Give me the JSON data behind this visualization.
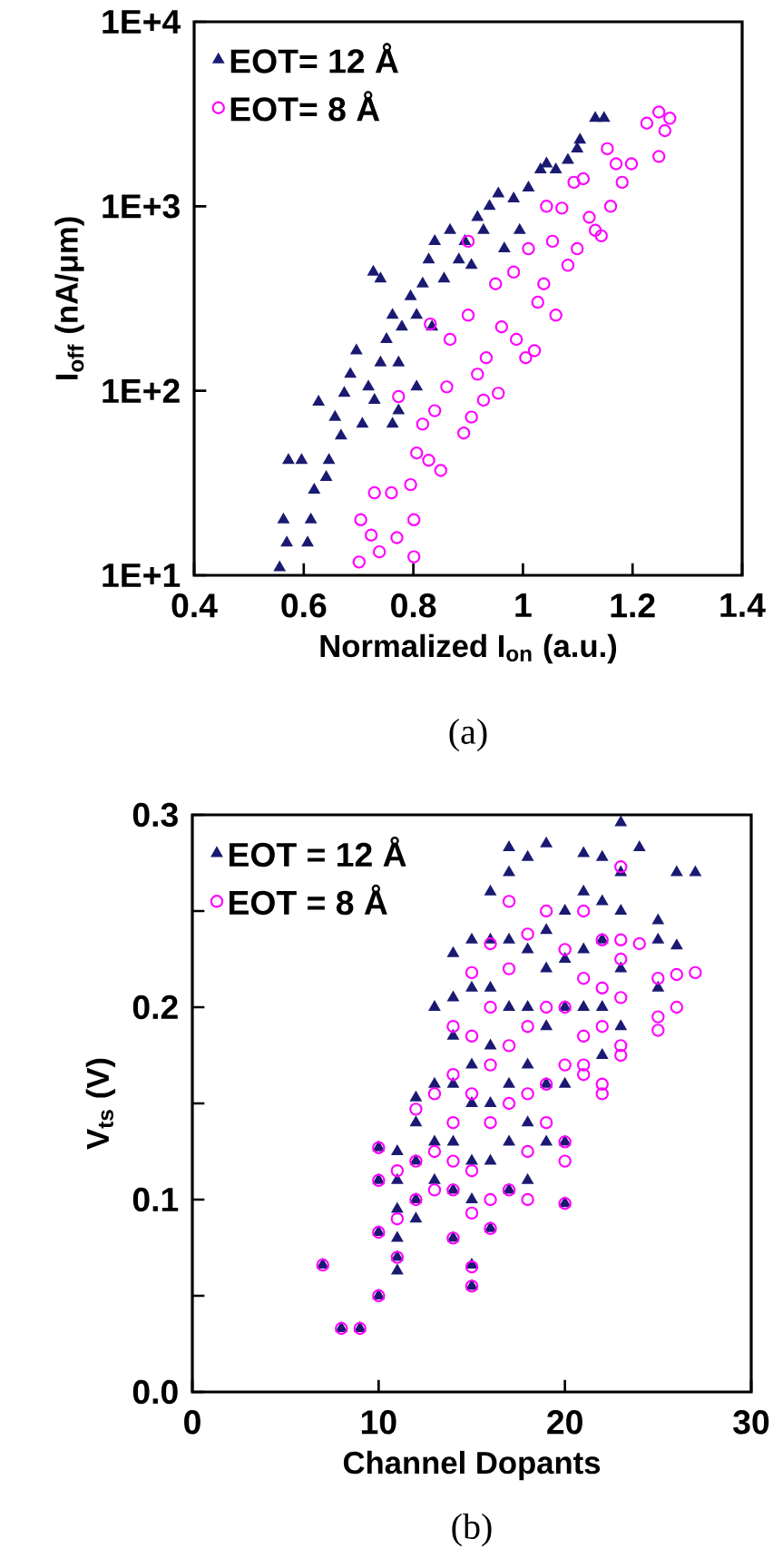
{
  "chart_data": [
    {
      "type": "scatter",
      "xlabel": "Normalized I$_{on}$ (a.u.)",
      "ylabel": "I$_{off}$ (nA/μm)",
      "log": "y",
      "legend": "top left",
      "xlim": [
        0.4,
        1.4
      ],
      "xticks": [
        0.4,
        0.6,
        0.8,
        1,
        1.2,
        1.4
      ],
      "ylim": [
        10,
        10000
      ],
      "yticks": [
        {
          "value": 10,
          "label": "1E+1"
        },
        {
          "value": 100,
          "label": "1E+2"
        },
        {
          "value": 1000,
          "label": "1E+3"
        },
        {
          "value": 10000,
          "label": "1E+4"
        }
      ],
      "annotations": [
        "(a)"
      ],
      "series": [
        {
          "name": "EOT= 12 Å",
          "color": "#1b1a72",
          "marker": "triangle",
          "x": [
            0.556,
            0.563,
            0.572,
            0.596,
            0.569,
            0.607,
            0.613,
            0.627,
            0.619,
            0.641,
            0.646,
            0.657,
            0.668,
            0.674,
            0.685,
            0.696,
            0.707,
            0.718,
            0.727,
            0.74,
            0.74,
            0.751,
            0.762,
            0.773,
            0.779,
            0.795,
            0.806,
            0.817,
            0.828,
            0.839,
            0.856,
            0.867,
            0.883,
            0.894,
            0.906,
            0.917,
            0.928,
            0.939,
            0.955,
            0.966,
            0.983,
            0.994,
            1.01,
            1.032,
            1.043,
            1.06,
            1.082,
            1.099,
            1.104,
            1.132,
            1.148,
            0.834,
            0.773,
            0.806,
            0.762,
            0.729
          ],
          "values": [
            11,
            20,
            42,
            42,
            15,
            15,
            20,
            87,
            29,
            34,
            42,
            72,
            57,
            97,
            123,
            165,
            66,
            105,
            440,
            405,
            142,
            190,
            257,
            142,
            222,
            324,
            257,
            380,
            513,
            646,
            405,
            741,
            513,
            646,
            479,
            871,
            741,
            1000,
            1170,
            589,
            1100,
            741,
            1260,
            1580,
            1700,
            1580,
            1780,
            2050,
            2290,
            3000,
            3000,
            222,
            78,
            105,
            66,
            89
          ]
        },
        {
          "name": "EOT= 8 Å",
          "color": "#ff00ff",
          "marker": "circle",
          "x": [
            0.701,
            0.704,
            0.723,
            0.738,
            0.729,
            0.76,
            0.77,
            0.801,
            0.801,
            0.795,
            0.806,
            0.773,
            0.817,
            0.828,
            0.85,
            0.839,
            0.861,
            0.867,
            0.892,
            0.9,
            0.906,
            0.917,
            0.928,
            0.933,
            0.95,
            0.955,
            0.961,
            0.983,
            0.988,
            1.005,
            1.01,
            1.021,
            1.027,
            1.038,
            1.043,
            1.054,
            1.06,
            1.071,
            1.082,
            1.093,
            1.099,
            1.11,
            1.121,
            1.132,
            1.143,
            1.154,
            1.16,
            1.17,
            1.181,
            1.198,
            1.226,
            1.248,
            1.248,
            1.259,
            1.268,
            0.9,
            0.831
          ],
          "values": [
            11.8,
            20,
            16.5,
            13.4,
            28,
            28,
            16,
            12.6,
            20,
            31,
            46,
            93,
            66,
            42,
            37,
            78,
            105,
            190,
            59,
            257,
            72,
            123,
            89,
            151,
            380,
            97,
            222,
            440,
            190,
            151,
            589,
            165,
            302,
            380,
            1000,
            646,
            257,
            977,
            479,
            1350,
            589,
            1410,
            871,
            741,
            692,
            2050,
            1000,
            1700,
            1350,
            1700,
            2820,
            3240,
            1860,
            2570,
            3000,
            646,
            230
          ]
        }
      ]
    },
    {
      "type": "scatter",
      "xlabel": "Channel Dopants",
      "ylabel": "V$_{ts}$ (V)",
      "legend": "top left",
      "xlim": [
        0,
        30
      ],
      "xticks": [
        0,
        10,
        20,
        30
      ],
      "ylim": [
        0,
        0.3
      ],
      "yticks": [
        {
          "value": 0,
          "label": "0.0"
        },
        {
          "value": 0.05,
          "label": null
        },
        0.1,
        {
          "value": 0.15,
          "label": null
        },
        0.2,
        {
          "value": 0.25,
          "label": null
        },
        0.3
      ],
      "annotations": [
        "(b)"
      ],
      "series": [
        {
          "name": "EOT = 12 Å",
          "color": "#1b1a72",
          "marker": "triangle",
          "x": [
            7,
            8,
            9,
            10,
            10,
            10,
            10,
            11,
            11,
            11,
            11,
            11,
            11,
            12,
            12,
            12,
            12,
            12,
            13,
            13,
            13,
            13,
            14,
            14,
            14,
            14,
            14,
            14,
            14,
            15,
            15,
            15,
            15,
            15,
            15,
            15,
            15,
            16,
            16,
            16,
            16,
            16,
            16,
            16,
            17,
            17,
            17,
            17,
            17,
            17,
            17,
            18,
            18,
            18,
            18,
            18,
            18,
            19,
            19,
            19,
            19,
            19,
            19,
            20,
            20,
            20,
            20,
            20,
            20,
            21,
            21,
            21,
            21,
            22,
            22,
            22,
            22,
            22,
            23,
            23,
            23,
            23,
            23,
            24,
            25,
            25,
            25,
            26,
            26,
            27
          ],
          "values": [
            0.066,
            0.033,
            0.033,
            0.05,
            0.083,
            0.11,
            0.127,
            0.063,
            0.07,
            0.08,
            0.095,
            0.11,
            0.125,
            0.09,
            0.1,
            0.12,
            0.14,
            0.153,
            0.11,
            0.13,
            0.16,
            0.2,
            0.08,
            0.105,
            0.13,
            0.16,
            0.185,
            0.205,
            0.228,
            0.055,
            0.066,
            0.1,
            0.12,
            0.15,
            0.17,
            0.21,
            0.235,
            0.085,
            0.12,
            0.15,
            0.18,
            0.21,
            0.235,
            0.26,
            0.105,
            0.13,
            0.16,
            0.2,
            0.235,
            0.27,
            0.283,
            0.11,
            0.14,
            0.17,
            0.2,
            0.23,
            0.278,
            0.13,
            0.16,
            0.19,
            0.22,
            0.24,
            0.285,
            0.098,
            0.13,
            0.16,
            0.2,
            0.225,
            0.25,
            0.2,
            0.23,
            0.26,
            0.28,
            0.175,
            0.2,
            0.235,
            0.255,
            0.278,
            0.19,
            0.22,
            0.25,
            0.27,
            0.296,
            0.283,
            0.21,
            0.235,
            0.245,
            0.232,
            0.27,
            0.27
          ]
        },
        {
          "name": "EOT = 8 Å",
          "color": "#ff00ff",
          "marker": "circle",
          "x": [
            7,
            8,
            9,
            10,
            10,
            10,
            10,
            11,
            11,
            11,
            12,
            12,
            12,
            13,
            13,
            13,
            14,
            14,
            14,
            14,
            14,
            14,
            15,
            15,
            15,
            15,
            15,
            15,
            15,
            16,
            16,
            16,
            16,
            16,
            16,
            17,
            17,
            17,
            17,
            17,
            18,
            18,
            18,
            18,
            18,
            19,
            19,
            19,
            19,
            20,
            20,
            20,
            20,
            20,
            20,
            21,
            21,
            21,
            21,
            21,
            22,
            22,
            22,
            22,
            22,
            23,
            23,
            23,
            23,
            23,
            23,
            24,
            25,
            25,
            25,
            26,
            26,
            27
          ],
          "values": [
            0.066,
            0.033,
            0.033,
            0.05,
            0.083,
            0.11,
            0.127,
            0.07,
            0.09,
            0.115,
            0.1,
            0.12,
            0.147,
            0.105,
            0.125,
            0.155,
            0.08,
            0.105,
            0.12,
            0.14,
            0.165,
            0.19,
            0.055,
            0.065,
            0.093,
            0.115,
            0.155,
            0.185,
            0.218,
            0.085,
            0.1,
            0.14,
            0.17,
            0.2,
            0.233,
            0.105,
            0.15,
            0.18,
            0.22,
            0.255,
            0.1,
            0.125,
            0.155,
            0.19,
            0.238,
            0.14,
            0.16,
            0.2,
            0.25,
            0.098,
            0.12,
            0.13,
            0.17,
            0.2,
            0.23,
            0.165,
            0.17,
            0.185,
            0.215,
            0.25,
            0.155,
            0.16,
            0.19,
            0.21,
            0.235,
            0.175,
            0.18,
            0.205,
            0.225,
            0.235,
            0.273,
            0.233,
            0.188,
            0.195,
            0.215,
            0.2,
            0.217,
            0.218
          ]
        }
      ]
    }
  ]
}
